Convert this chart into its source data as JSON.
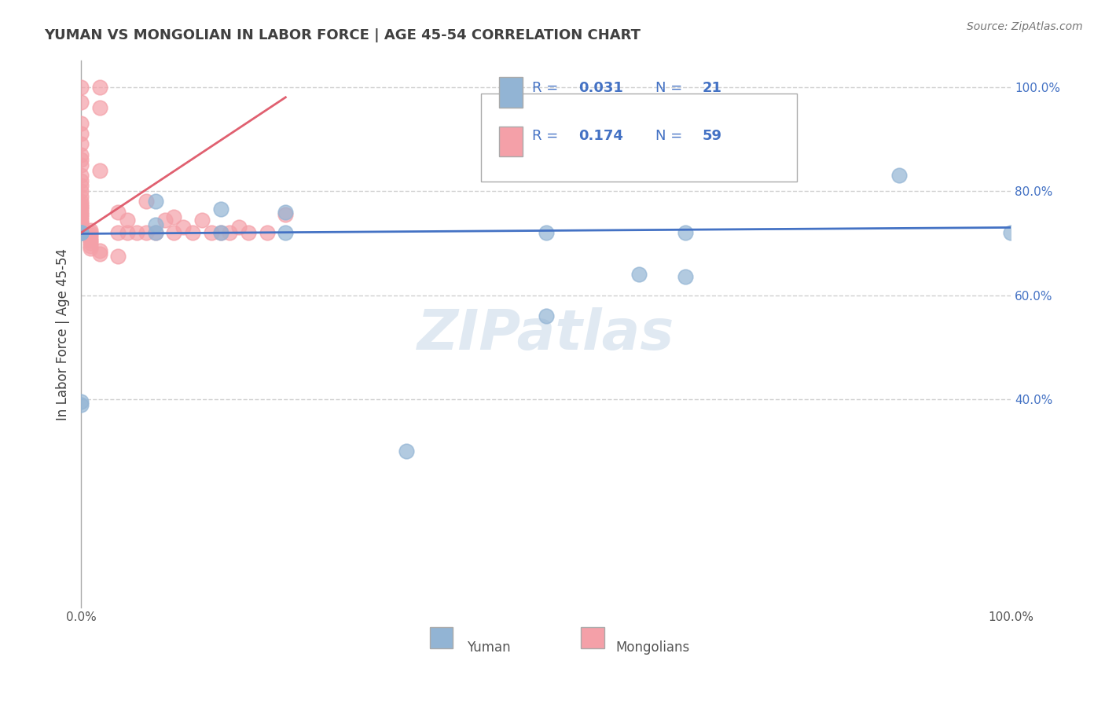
{
  "title": "YUMAN VS MONGOLIAN IN LABOR FORCE | AGE 45-54 CORRELATION CHART",
  "source_text": "Source: ZipAtlas.com",
  "xlabel": "",
  "ylabel": "In Labor Force | Age 45-54",
  "yuman_R": 0.031,
  "yuman_N": 21,
  "mongolian_R": 0.174,
  "mongolian_N": 59,
  "xlim": [
    0,
    1
  ],
  "ylim": [
    0,
    1
  ],
  "xtick_labels": [
    "0.0%",
    "100.0%"
  ],
  "watermark": "ZIPatlas",
  "yuman_color": "#92b4d4",
  "mongolian_color": "#f4a0a8",
  "yuman_scatter": [
    [
      0.0,
      0.72
    ],
    [
      0.0,
      0.72
    ],
    [
      0.08,
      0.72
    ],
    [
      0.08,
      0.78
    ],
    [
      0.08,
      0.735
    ],
    [
      0.0,
      0.72
    ],
    [
      0.0,
      0.72
    ],
    [
      0.15,
      0.72
    ],
    [
      0.15,
      0.765
    ],
    [
      0.22,
      0.72
    ],
    [
      0.22,
      0.76
    ],
    [
      0.5,
      0.72
    ],
    [
      0.5,
      0.56
    ],
    [
      0.65,
      0.635
    ],
    [
      0.65,
      0.72
    ],
    [
      0.88,
      0.83
    ],
    [
      1.0,
      0.72
    ],
    [
      0.0,
      0.39
    ],
    [
      0.0,
      0.395
    ],
    [
      0.35,
      0.3
    ],
    [
      0.6,
      0.64
    ]
  ],
  "mongolian_scatter": [
    [
      0.0,
      1.0
    ],
    [
      0.02,
      1.0
    ],
    [
      0.0,
      0.97
    ],
    [
      0.02,
      0.96
    ],
    [
      0.0,
      0.93
    ],
    [
      0.0,
      0.91
    ],
    [
      0.0,
      0.89
    ],
    [
      0.0,
      0.87
    ],
    [
      0.0,
      0.86
    ],
    [
      0.0,
      0.85
    ],
    [
      0.02,
      0.84
    ],
    [
      0.0,
      0.83
    ],
    [
      0.0,
      0.82
    ],
    [
      0.0,
      0.81
    ],
    [
      0.0,
      0.8
    ],
    [
      0.0,
      0.79
    ],
    [
      0.0,
      0.78
    ],
    [
      0.0,
      0.775
    ],
    [
      0.0,
      0.77
    ],
    [
      0.0,
      0.765
    ],
    [
      0.0,
      0.76
    ],
    [
      0.0,
      0.755
    ],
    [
      0.0,
      0.75
    ],
    [
      0.0,
      0.745
    ],
    [
      0.0,
      0.74
    ],
    [
      0.0,
      0.735
    ],
    [
      0.0,
      0.73
    ],
    [
      0.01,
      0.725
    ],
    [
      0.01,
      0.72
    ],
    [
      0.01,
      0.715
    ],
    [
      0.01,
      0.71
    ],
    [
      0.01,
      0.705
    ],
    [
      0.01,
      0.7
    ],
    [
      0.01,
      0.695
    ],
    [
      0.01,
      0.69
    ],
    [
      0.02,
      0.685
    ],
    [
      0.02,
      0.68
    ],
    [
      0.04,
      0.675
    ],
    [
      0.04,
      0.72
    ],
    [
      0.04,
      0.76
    ],
    [
      0.05,
      0.72
    ],
    [
      0.05,
      0.745
    ],
    [
      0.06,
      0.72
    ],
    [
      0.07,
      0.72
    ],
    [
      0.07,
      0.78
    ],
    [
      0.08,
      0.72
    ],
    [
      0.09,
      0.745
    ],
    [
      0.1,
      0.72
    ],
    [
      0.1,
      0.75
    ],
    [
      0.11,
      0.73
    ],
    [
      0.12,
      0.72
    ],
    [
      0.13,
      0.745
    ],
    [
      0.14,
      0.72
    ],
    [
      0.15,
      0.72
    ],
    [
      0.16,
      0.72
    ],
    [
      0.17,
      0.73
    ],
    [
      0.18,
      0.72
    ],
    [
      0.2,
      0.72
    ],
    [
      0.22,
      0.755
    ]
  ],
  "yuman_trend_x": [
    0.0,
    1.0
  ],
  "yuman_trend_y": [
    0.718,
    0.73
  ],
  "mongolian_trend_x": [
    0.0,
    0.22
  ],
  "mongolian_trend_y": [
    0.72,
    0.98
  ],
  "grid_color": "#d0d0d0",
  "background_color": "#ffffff",
  "title_color": "#404040",
  "legend_text_color": "#4472c4"
}
